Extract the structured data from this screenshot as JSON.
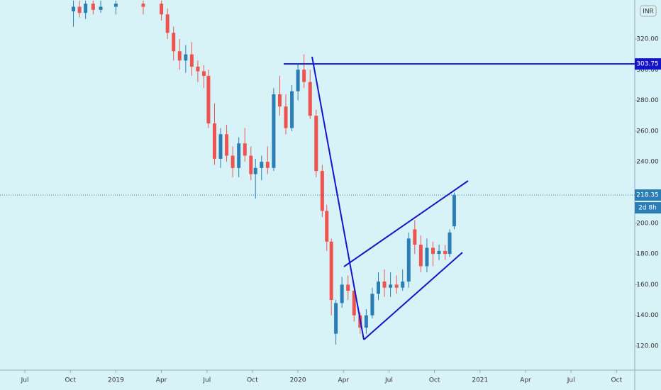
{
  "chart_data": {
    "type": "candlestick",
    "currency": "INR",
    "x": [
      9.2,
      9.6,
      10.0,
      10.5,
      11.0,
      12.0,
      13.8,
      15.0,
      15.4,
      15.8,
      16.2,
      16.6,
      17.0,
      17.4,
      17.8,
      18.1,
      18.5,
      18.9,
      19.3,
      19.7,
      20.1,
      20.5,
      20.9,
      21.2,
      21.6,
      22.0,
      22.4,
      22.8,
      23.2,
      23.6,
      24.0,
      24.4,
      24.8,
      25.2,
      25.6,
      25.9,
      26.2,
      26.5,
      26.9,
      27.3,
      27.7,
      28.1,
      28.5,
      28.9,
      29.3,
      29.7,
      30.1,
      30.5,
      30.9,
      31.3,
      31.7,
      32.1,
      32.5,
      32.9,
      33.3,
      33.7,
      34.0,
      34.3
    ],
    "open": [
      338,
      341,
      337,
      343,
      339,
      341,
      343,
      343,
      336,
      324,
      312,
      306,
      310,
      302,
      299,
      296,
      265,
      242,
      258,
      244,
      236,
      252,
      244,
      232,
      236,
      240,
      236,
      284,
      276,
      262,
      286,
      300,
      292,
      270,
      234,
      208,
      188,
      128,
      148,
      160,
      156,
      140,
      132,
      140,
      154,
      162,
      158,
      160,
      158,
      162,
      196,
      186,
      172,
      184,
      180,
      182,
      180,
      198
    ],
    "high": [
      345,
      345,
      345,
      345,
      345,
      345,
      345,
      345,
      340,
      328,
      320,
      316,
      318,
      306,
      303,
      300,
      278,
      262,
      264,
      250,
      256,
      262,
      250,
      242,
      244,
      250,
      288,
      296,
      284,
      290,
      304,
      310,
      300,
      274,
      238,
      212,
      190,
      150,
      165,
      166,
      160,
      142,
      144,
      158,
      168,
      170,
      168,
      166,
      170,
      194,
      202,
      192,
      190,
      188,
      186,
      186,
      196,
      220
    ],
    "low": [
      328,
      334,
      333,
      336,
      337,
      336,
      336,
      332,
      320,
      306,
      300,
      298,
      296,
      292,
      288,
      262,
      238,
      236,
      240,
      230,
      230,
      240,
      228,
      216,
      228,
      232,
      234,
      270,
      258,
      260,
      280,
      288,
      268,
      230,
      204,
      182,
      140,
      121,
      145,
      150,
      136,
      128,
      128,
      138,
      150,
      152,
      152,
      154,
      156,
      158,
      180,
      168,
      168,
      172,
      176,
      176,
      178,
      196
    ],
    "close": [
      341,
      337,
      343,
      339,
      341,
      343,
      341,
      336,
      324,
      312,
      306,
      310,
      302,
      299,
      296,
      265,
      242,
      258,
      244,
      236,
      252,
      244,
      232,
      236,
      240,
      236,
      284,
      276,
      262,
      286,
      300,
      292,
      270,
      234,
      208,
      188,
      150,
      148,
      160,
      156,
      140,
      132,
      140,
      154,
      162,
      158,
      160,
      158,
      162,
      190,
      186,
      172,
      184,
      180,
      182,
      180,
      194,
      218.35
    ],
    "up_color": "#2a7db5",
    "down_color": "#ef5350",
    "xlim": [
      4.36,
      46.2
    ],
    "xticks": [
      {
        "value": 6,
        "label": "Jul"
      },
      {
        "value": 9,
        "label": "Oct"
      },
      {
        "value": 12,
        "label": "2019"
      },
      {
        "value": 15,
        "label": "Apr"
      },
      {
        "value": 18,
        "label": "Jul"
      },
      {
        "value": 21,
        "label": "Oct"
      },
      {
        "value": 24,
        "label": "2020"
      },
      {
        "value": 27,
        "label": "Apr"
      },
      {
        "value": 30,
        "label": "Jul"
      },
      {
        "value": 33,
        "label": "Oct"
      },
      {
        "value": 36,
        "label": "2021"
      },
      {
        "value": 39,
        "label": "Apr"
      },
      {
        "value": 42,
        "label": "Jul"
      },
      {
        "value": 45,
        "label": "Oct"
      }
    ],
    "ylim": [
      104.3,
      345.4
    ],
    "yticks": [
      {
        "value": 120,
        "label": "120.00"
      },
      {
        "value": 140,
        "label": "140.00"
      },
      {
        "value": 160,
        "label": "160.00"
      },
      {
        "value": 180,
        "label": "180.00"
      },
      {
        "value": 200,
        "label": "200.00"
      },
      {
        "value": 220,
        "label": "220.00"
      },
      {
        "value": 240,
        "label": "240.00"
      },
      {
        "value": 260,
        "label": "260.00"
      },
      {
        "value": 280,
        "label": "280.00"
      },
      {
        "value": 300,
        "label": "300.00"
      },
      {
        "value": 320,
        "label": "320.00"
      }
    ],
    "grid": false,
    "horizontal_line": 303.75,
    "horizontal_line_color": "#1515c8",
    "last_price": 218.35,
    "countdown": "2d 8h"
  }
}
